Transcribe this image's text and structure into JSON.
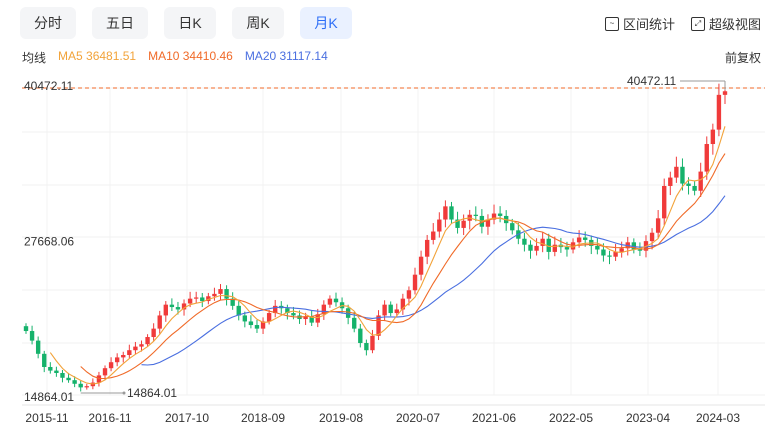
{
  "tabs": [
    {
      "label": "分时",
      "active": false
    },
    {
      "label": "五日",
      "active": false
    },
    {
      "label": "日K",
      "active": false
    },
    {
      "label": "周K",
      "active": false
    },
    {
      "label": "月K",
      "active": true
    }
  ],
  "tools": {
    "range_stats": "区间统计",
    "fullscreen": "超级视图"
  },
  "legend": {
    "label": "均线",
    "ma5": "MA5 36481.51",
    "ma10": "MA10 34410.46",
    "ma20": "MA20 31117.14"
  },
  "adjust": "前复权",
  "colors": {
    "up": "#f03a3a",
    "down": "#15b26b",
    "ma5": "#f2a33a",
    "ma10": "#f06a28",
    "ma20": "#4a6fe0",
    "accent": "#2d6ef7"
  },
  "chart_data": {
    "type": "candlestick",
    "y_ticks": [
      "40472.11",
      "27668.06",
      "14864.01"
    ],
    "ylim": [
      14864.01,
      40472.11
    ],
    "x_ticks": [
      "2015-11",
      "2016-11",
      "2017-10",
      "2018-09",
      "2019-08",
      "2020-07",
      "2021-06",
      "2022-05",
      "2023-04",
      "2024-03"
    ],
    "max_label": "40472.11",
    "min_label": "14864.01",
    "closes": [
      20200,
      19400,
      18300,
      17200,
      16900,
      16700,
      16300,
      16100,
      15800,
      15500,
      15600,
      15900,
      16500,
      17100,
      17600,
      18000,
      18200,
      18600,
      18900,
      19100,
      19700,
      20400,
      21500,
      22400,
      22200,
      22000,
      22500,
      22900,
      23000,
      22700,
      23100,
      23300,
      23700,
      22900,
      22300,
      21500,
      21000,
      20700,
      20400,
      21000,
      21700,
      22300,
      22100,
      21700,
      21500,
      21200,
      21400,
      20900,
      21600,
      22400,
      22900,
      22600,
      22100,
      21300,
      20400,
      19200,
      18600,
      19800,
      21500,
      22400,
      21700,
      22000,
      22900,
      23600,
      24900,
      26400,
      27800,
      28500,
      29500,
      30600,
      29500,
      28800,
      29400,
      29900,
      29800,
      28900,
      29500,
      30000,
      29800,
      29200,
      28600,
      27900,
      27400,
      26900,
      27300,
      27900,
      26800,
      27400,
      27200,
      27000,
      27600,
      28000,
      27800,
      27300,
      27000,
      26500,
      26400,
      26800,
      27100,
      27600,
      27000,
      26900,
      27700,
      28400,
      29600,
      32300,
      33000,
      33900,
      32500,
      32300,
      31900,
      33500,
      35800,
      37000,
      39900,
      40200
    ]
  }
}
